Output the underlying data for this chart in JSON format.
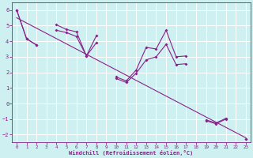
{
  "xlabel": "Windchill (Refroidissement éolien,°C)",
  "background_color": "#cef0f0",
  "grid_color": "#b8e8e8",
  "line_color": "#882288",
  "xlim": [
    -0.5,
    23.5
  ],
  "ylim": [
    -2.5,
    6.5
  ],
  "xticks": [
    0,
    1,
    2,
    3,
    4,
    5,
    6,
    7,
    8,
    9,
    10,
    11,
    12,
    13,
    14,
    15,
    16,
    17,
    18,
    19,
    20,
    21,
    22,
    23
  ],
  "yticks": [
    -2,
    -1,
    0,
    1,
    2,
    3,
    4,
    5,
    6
  ],
  "series1_x": [
    0,
    1,
    2,
    3,
    4,
    5,
    6,
    7,
    8,
    9,
    10,
    11,
    12,
    13,
    14,
    15,
    16,
    17,
    18,
    19,
    20,
    21,
    22,
    23
  ],
  "series1_y": [
    6.0,
    4.15,
    3.75,
    null,
    5.05,
    4.75,
    4.6,
    3.05,
    4.35,
    null,
    1.7,
    1.45,
    2.15,
    3.6,
    3.5,
    4.7,
    3.0,
    3.05,
    null,
    -1.1,
    -1.3,
    -1.0,
    null,
    -2.3
  ],
  "series2_x": [
    0,
    1,
    2,
    3,
    4,
    5,
    6,
    7,
    8,
    9,
    10,
    11,
    12,
    13,
    14,
    15,
    16,
    17,
    18,
    19,
    20,
    21,
    22,
    23
  ],
  "series2_y": [
    6.0,
    4.15,
    3.75,
    null,
    4.7,
    4.55,
    4.3,
    3.05,
    3.9,
    null,
    1.6,
    1.35,
    1.95,
    2.8,
    3.0,
    3.8,
    2.5,
    2.55,
    null,
    -1.05,
    -1.25,
    -0.95,
    null,
    -2.3
  ],
  "trend_x": [
    0,
    23
  ],
  "trend_y": [
    5.5,
    -2.2
  ]
}
